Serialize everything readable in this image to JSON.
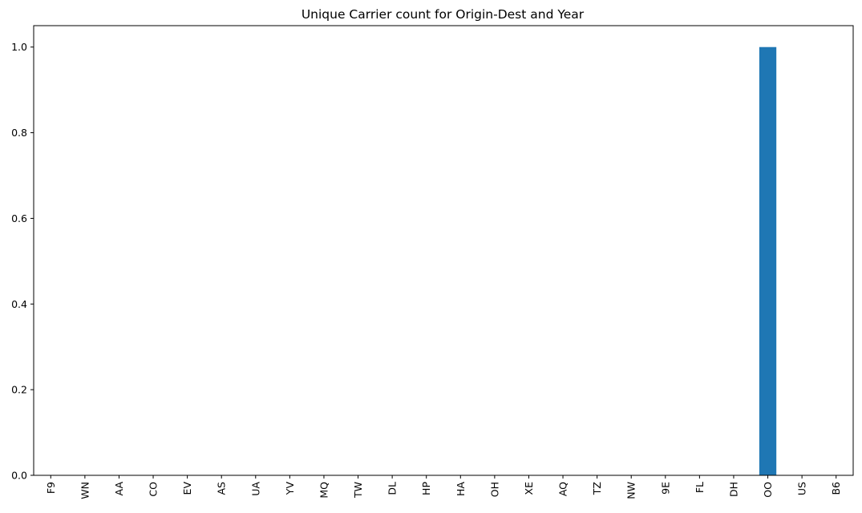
{
  "chart_data": {
    "type": "bar",
    "title": "Unique Carrier count for Origin-Dest and Year",
    "xlabel": "",
    "ylabel": "",
    "categories": [
      "F9",
      "WN",
      "AA",
      "CO",
      "EV",
      "AS",
      "UA",
      "YV",
      "MQ",
      "TW",
      "DL",
      "HP",
      "HA",
      "OH",
      "XE",
      "AQ",
      "TZ",
      "NW",
      "9E",
      "FL",
      "DH",
      "OO",
      "US",
      "B6"
    ],
    "values": [
      0,
      0,
      0,
      0,
      0,
      0,
      0,
      0,
      0,
      0,
      0,
      0,
      0,
      0,
      0,
      0,
      0,
      0,
      0,
      0,
      0,
      1,
      0,
      0
    ],
    "ylim": [
      0,
      1.05
    ],
    "yticks": [
      "0.0",
      "0.2",
      "0.4",
      "0.6",
      "0.8",
      "1.0"
    ],
    "grid": false,
    "legend": "none",
    "bar_color": "#1f77b4"
  }
}
